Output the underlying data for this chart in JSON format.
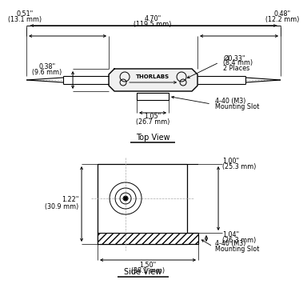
{
  "bg_color": "#ffffff",
  "line_color": "#000000",
  "fs": 5.8,
  "ft": 7.0,
  "thorlabs_text": "THORLABS",
  "top_view_label": "Top View",
  "side_view_label": "Side View",
  "dims": {
    "total_width_in": "4.70\"",
    "total_width_mm": "(119.5 mm)",
    "left_fiber_in": "0.51\"",
    "left_fiber_mm": "(13.1 mm)",
    "right_fiber_in": "0.48\"",
    "right_fiber_mm": "(12.2 mm)",
    "body_height_in": "0.38\"",
    "body_height_mm": "(9.6 mm)",
    "slot_width_in": "1.05\"",
    "slot_width_mm": "(26.7 mm)",
    "hole_dia_in": "Ø0.33\"",
    "hole_dia_mm": "(8.4 mm)",
    "hole_places": "2 Places",
    "top_mounting": "4-40 (M3)",
    "top_mounting2": "Mounting Slot",
    "side_height_in": "1.22\"",
    "side_height_mm": "(30.9 mm)",
    "side_top_in": "1.00\"",
    "side_top_mm": "(25.3 mm)",
    "side_body_in": "1.04\"",
    "side_body_mm": "(26.3 mm)",
    "side_width_in": "1.50\"",
    "side_width_mm": "(38.1 mm)",
    "side_mounting": "4-40 (M3)",
    "side_mounting2": "Mounting Slot"
  }
}
